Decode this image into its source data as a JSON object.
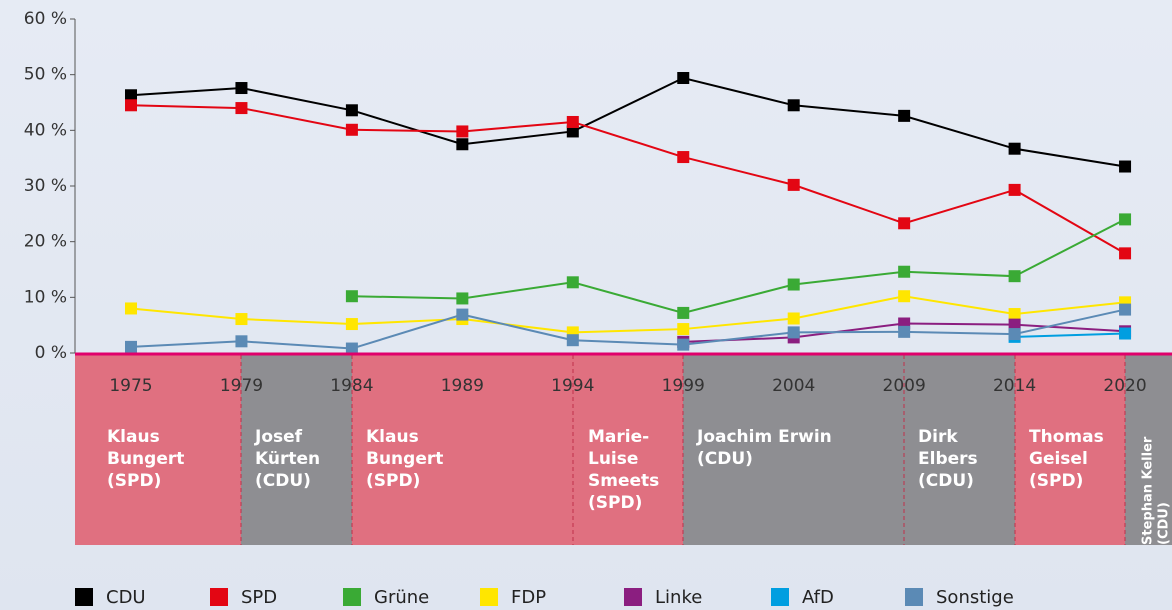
{
  "chart_data": {
    "type": "line",
    "categories": [
      "1975",
      "1979",
      "1984",
      "1989",
      "1994",
      "1999",
      "2004",
      "2009",
      "2014",
      "2020"
    ],
    "ylim": [
      0,
      60
    ],
    "yticks": [
      {
        "value": 0,
        "label": "0 %"
      },
      {
        "value": 10,
        "label": "10 %"
      },
      {
        "value": 20,
        "label": "20 %"
      },
      {
        "value": 30,
        "label": "30 %"
      },
      {
        "value": 40,
        "label": "40 %"
      },
      {
        "value": 50,
        "label": "50 %"
      },
      {
        "value": 60,
        "label": "60 %"
      }
    ],
    "series": [
      {
        "name": "CDU",
        "color": "#000000",
        "values": [
          46.3,
          47.6,
          43.6,
          37.5,
          39.8,
          49.4,
          44.5,
          42.6,
          36.7,
          33.5
        ]
      },
      {
        "name": "SPD",
        "color": "#e30613",
        "values": [
          44.5,
          44.0,
          40.1,
          39.8,
          41.5,
          35.2,
          30.2,
          23.3,
          29.3,
          17.9
        ]
      },
      {
        "name": "Grüne",
        "color": "#3aaa35",
        "values": [
          null,
          null,
          10.2,
          9.8,
          12.7,
          7.2,
          12.3,
          14.6,
          13.8,
          24.0
        ]
      },
      {
        "name": "FDP",
        "color": "#ffe600",
        "values": [
          8.0,
          6.1,
          5.2,
          6.1,
          3.7,
          4.3,
          6.2,
          10.2,
          7.0,
          9.1
        ]
      },
      {
        "name": "Linke",
        "color": "#8b1e80",
        "values": [
          null,
          null,
          null,
          null,
          null,
          2.0,
          2.8,
          5.3,
          5.1,
          3.9
        ]
      },
      {
        "name": "AfD",
        "color": "#009ee0",
        "values": [
          null,
          null,
          null,
          null,
          null,
          null,
          null,
          null,
          2.9,
          3.5
        ]
      },
      {
        "name": "Sonstige",
        "color": "#5b8ab5",
        "values": [
          1.1,
          2.1,
          0.8,
          6.9,
          2.3,
          1.5,
          3.7,
          3.8,
          3.4,
          7.8
        ]
      }
    ],
    "mayors": [
      {
        "lines": [
          "Klaus",
          "Bungert",
          "(SPD)"
        ]
      },
      {
        "lines": [
          "Josef",
          "Kürten",
          "(CDU)"
        ]
      },
      {
        "lines": [
          "Klaus",
          "Bungert",
          "(SPD)"
        ]
      },
      {
        "lines": [
          "Marie-",
          "Luise",
          "Smeets",
          "(SPD)"
        ]
      },
      {
        "lines": [
          "Joachim Erwin",
          "(CDU)"
        ]
      },
      {
        "lines": [
          "Dirk",
          "Elbers",
          "(CDU)"
        ]
      },
      {
        "lines": [
          "Thomas",
          "Geisel",
          "(SPD)"
        ]
      },
      {
        "lines": [
          "Stephan Keller",
          "(CDU)"
        ]
      }
    ]
  }
}
